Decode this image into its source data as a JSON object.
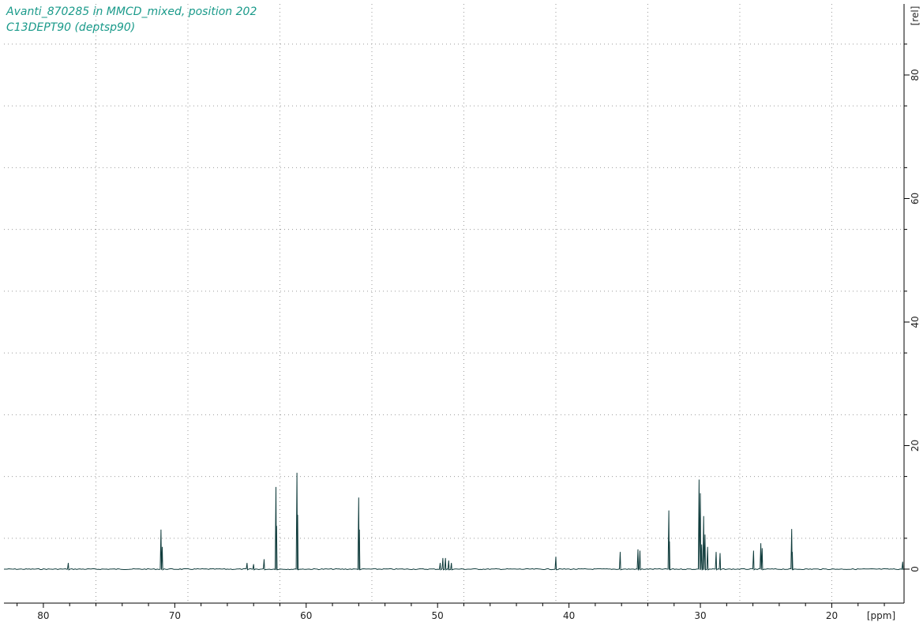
{
  "header": {
    "line1": "Avanti_870285 in MMCD_mixed, position 202",
    "line2": "C13DEPT90 (deptsp90)"
  },
  "colors": {
    "spectrum": "#103c3c",
    "title": "#1a9a8a",
    "grid": "#9a9a9a",
    "axis": "#000000"
  },
  "chart_data": {
    "type": "line",
    "title": "",
    "xlabel": "[ppm]",
    "ylabel": "[rel]",
    "x_reversed": true,
    "xlim": [
      83.0,
      14.5
    ],
    "ylim": [
      -5.5,
      91.5
    ],
    "grid": true,
    "x_ticks": [
      80,
      70,
      60,
      50,
      40,
      30,
      20
    ],
    "x_minor_ticks": [
      82,
      78,
      76,
      74,
      72,
      68,
      66,
      64,
      62,
      58,
      56,
      54,
      52,
      48,
      46,
      44,
      42,
      38,
      36,
      34,
      32,
      28,
      26,
      24,
      22,
      18,
      16
    ],
    "x_grid": [
      76,
      69,
      62,
      55,
      48,
      41,
      34,
      27,
      20
    ],
    "y_ticks": [
      0,
      20,
      40,
      60,
      80
    ],
    "y_grid": [
      5,
      15,
      25,
      35,
      45,
      55,
      65,
      75,
      85
    ],
    "peaks": [
      {
        "ppm": 78.1,
        "height": 1.0
      },
      {
        "ppm": 71.05,
        "height": 6.4
      },
      {
        "ppm": 70.95,
        "height": 3.6
      },
      {
        "ppm": 64.5,
        "height": 1.0
      },
      {
        "ppm": 64.0,
        "height": 0.8
      },
      {
        "ppm": 63.2,
        "height": 1.6
      },
      {
        "ppm": 62.3,
        "height": 13.3
      },
      {
        "ppm": 62.25,
        "height": 7.0
      },
      {
        "ppm": 60.7,
        "height": 15.6
      },
      {
        "ppm": 60.65,
        "height": 8.8
      },
      {
        "ppm": 56.0,
        "height": 11.6
      },
      {
        "ppm": 55.95,
        "height": 6.4
      },
      {
        "ppm": 49.8,
        "height": 1.0
      },
      {
        "ppm": 49.6,
        "height": 1.8
      },
      {
        "ppm": 49.4,
        "height": 1.8
      },
      {
        "ppm": 49.15,
        "height": 1.4
      },
      {
        "ppm": 48.95,
        "height": 1.0
      },
      {
        "ppm": 41.0,
        "height": 2.0
      },
      {
        "ppm": 36.1,
        "height": 2.8
      },
      {
        "ppm": 34.75,
        "height": 3.2
      },
      {
        "ppm": 34.6,
        "height": 3.0
      },
      {
        "ppm": 32.4,
        "height": 9.5
      },
      {
        "ppm": 32.35,
        "height": 4.5
      },
      {
        "ppm": 30.1,
        "height": 14.5
      },
      {
        "ppm": 30.0,
        "height": 12.3
      },
      {
        "ppm": 29.9,
        "height": 4.0
      },
      {
        "ppm": 29.75,
        "height": 8.6
      },
      {
        "ppm": 29.65,
        "height": 5.6
      },
      {
        "ppm": 29.45,
        "height": 3.6
      },
      {
        "ppm": 28.8,
        "height": 2.8
      },
      {
        "ppm": 28.5,
        "height": 2.6
      },
      {
        "ppm": 25.95,
        "height": 3.0
      },
      {
        "ppm": 25.4,
        "height": 4.2
      },
      {
        "ppm": 25.3,
        "height": 3.4
      },
      {
        "ppm": 23.05,
        "height": 6.5
      },
      {
        "ppm": 23.0,
        "height": 2.8
      },
      {
        "ppm": 14.6,
        "height": 1.2
      }
    ]
  }
}
